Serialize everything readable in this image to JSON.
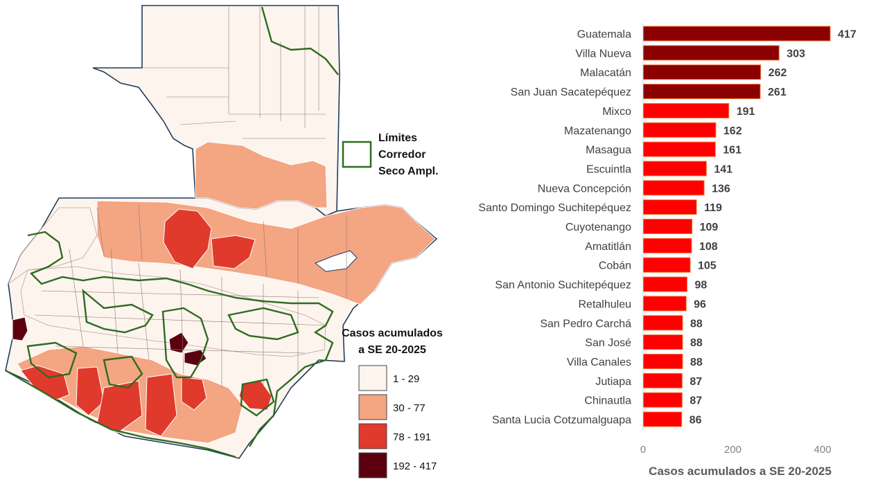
{
  "map": {
    "corridor_legend": {
      "lines": [
        "Límites",
        "Corredor",
        "Seco Ampl."
      ],
      "color": "#2e6b1f"
    },
    "cases_legend": {
      "title_lines": [
        "Casos acumulados",
        "a SE 20-2025"
      ],
      "classes": [
        {
          "label": "1 - 29",
          "color": "#fdf4ee"
        },
        {
          "label": "30 - 77",
          "color": "#f4a582"
        },
        {
          "label": "78 - 191",
          "color": "#e03a2d"
        },
        {
          "label": "192 - 417",
          "color": "#5c0010"
        }
      ]
    },
    "border_color": "#1f3a5f"
  },
  "chart_data": {
    "type": "bar",
    "orientation": "horizontal",
    "categories": [
      "Guatemala",
      "Villa Nueva",
      "Malacatán",
      "San Juan Sacatepéquez",
      "Mixco",
      "Mazatenango",
      "Masagua",
      "Escuintla",
      "Nueva Concepción",
      "Santo Domingo Suchitepéquez",
      "Cuyotenango",
      "Amatitlán",
      "Cobán",
      "San Antonio Suchitepéquez",
      "Retalhuleu",
      "San Pedro Carchá",
      "San José",
      "Villa Canales",
      "Jutiapa",
      "Chinautla",
      "Santa Lucia Cotzumalguapa"
    ],
    "values": [
      417,
      303,
      262,
      261,
      191,
      162,
      161,
      141,
      136,
      119,
      109,
      108,
      105,
      98,
      96,
      88,
      88,
      88,
      87,
      87,
      86
    ],
    "xlabel": "Casos acumulados a SE 20-2025",
    "ylabel": "",
    "xlim": [
      0,
      420
    ],
    "xticks": [
      0,
      200,
      400
    ],
    "grid": false,
    "bar_color_high": "#8b0000",
    "bar_color": "#ff0000",
    "bar_border": "#f07030",
    "high_threshold": 192
  }
}
